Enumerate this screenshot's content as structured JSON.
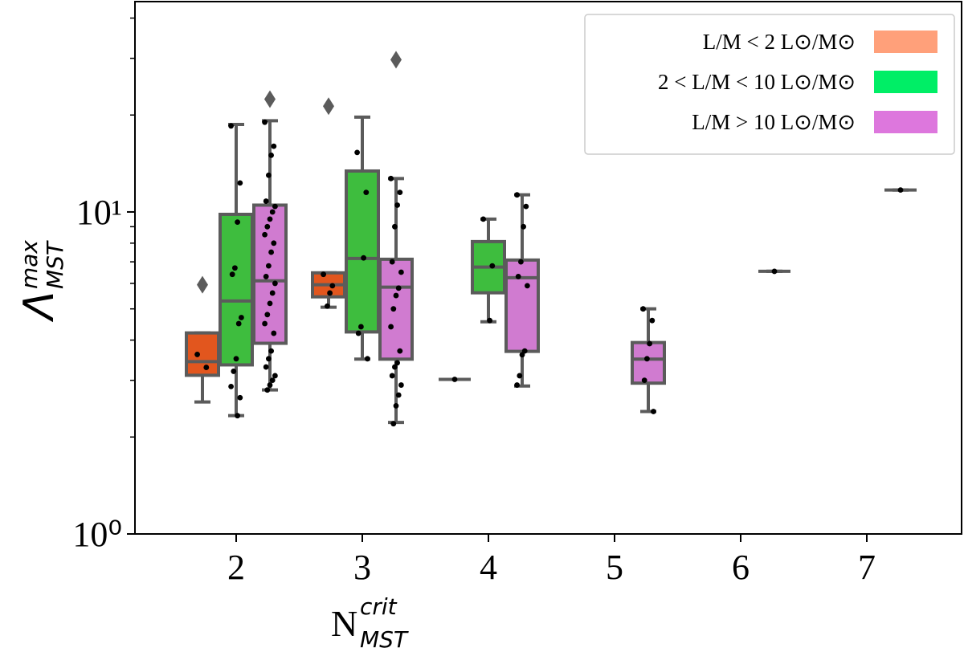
{
  "chart_data": {
    "type": "box",
    "categories": [
      2,
      3,
      4,
      5,
      6,
      7
    ],
    "x_label": {
      "base": "N",
      "sup": "crit",
      "sub": "MST"
    },
    "y_label": {
      "base": "Λ",
      "sup": "max",
      "sub": "MST"
    },
    "log_y": true,
    "ylim": [
      1,
      45
    ],
    "yticks": [
      {
        "value": 1,
        "label": "10⁰"
      },
      {
        "value": 10,
        "label": "10¹"
      }
    ],
    "yminorticks": [
      2,
      3,
      4,
      5,
      6,
      7,
      8,
      9,
      20,
      30,
      40
    ],
    "legend": "upper right",
    "series": [
      {
        "name": "L/M < 2 L⊙/M⊙",
        "color": "#ffa07a",
        "box_color": "#e2561e",
        "boxes": [
          {
            "whislo": 2.57,
            "q1": 3.11,
            "med": 3.43,
            "q3": 4.21,
            "whishi": 4.21,
            "fliers": [
              5.94
            ],
            "points": [
              3.61,
              3.29
            ]
          },
          {
            "whislo": 5.06,
            "q1": 5.45,
            "med": 5.94,
            "q3": 6.47,
            "whishi": 6.47,
            "fliers": [
              21.3
            ],
            "points": [
              6.4,
              5.9,
              5.6,
              5.1
            ]
          },
          {
            "whislo": 3.02,
            "q1": 3.02,
            "med": 3.02,
            "q3": 3.02,
            "whishi": 3.02,
            "fliers": [],
            "points": [
              3.02
            ]
          },
          null,
          null,
          null
        ]
      },
      {
        "name": "2 < L/M < 10 L⊙/M⊙",
        "color": "#00ee66",
        "box_color": "#3ebd3e",
        "boxes": [
          {
            "whislo": 2.33,
            "q1": 3.35,
            "med": 5.29,
            "q3": 9.83,
            "whishi": 18.7,
            "fliers": [],
            "points": [
              18.5,
              12.3,
              9.3,
              6.7,
              6.4,
              4.7,
              4.5,
              3.5,
              3.2,
              2.87,
              2.65,
              2.33
            ]
          },
          {
            "whislo": 3.49,
            "q1": 4.24,
            "med": 7.17,
            "q3": 13.4,
            "whishi": 19.7,
            "fliers": [],
            "points": [
              15.3,
              11.5,
              7.2,
              4.4,
              4.2,
              3.5
            ]
          },
          {
            "whislo": 4.56,
            "q1": 5.61,
            "med": 6.74,
            "q3": 8.09,
            "whishi": 9.5,
            "fliers": [],
            "points": [
              9.5,
              6.8,
              4.6
            ]
          },
          null,
          null,
          null
        ]
      },
      {
        "name": "L/M > 10 L⊙/M⊙",
        "color": "#dd77dd",
        "box_color": "#d07bd0",
        "boxes": [
          {
            "whislo": 2.8,
            "q1": 3.91,
            "med": 6.11,
            "q3": 10.5,
            "whishi": 19.2,
            "fliers": [
              22.4
            ],
            "points": [
              19,
              16,
              15,
              13,
              10.8,
              10.4,
              10,
              9.5,
              9,
              8.5,
              8,
              7.5,
              6.8,
              6.3,
              6,
              5.6,
              5.2,
              4.8,
              4.5,
              4.2,
              3.7,
              3.5,
              3.3,
              3.1,
              3.0,
              2.9,
              2.8
            ]
          },
          {
            "whislo": 2.22,
            "q1": 3.49,
            "med": 5.84,
            "q3": 7.13,
            "whishi": 12.7,
            "fliers": [
              29.7
            ],
            "points": [
              12.7,
              11.5,
              10.5,
              9,
              7,
              6.5,
              5.8,
              5.5,
              5,
              4.4,
              3.7,
              3.4,
              3.3,
              3.1,
              2.9,
              2.7,
              2.5,
              2.2
            ]
          },
          {
            "whislo": 2.88,
            "q1": 3.69,
            "med": 6.25,
            "q3": 7.09,
            "whishi": 11.3,
            "fliers": [],
            "points": [
              11.3,
              10.4,
              9,
              7,
              6.3,
              5.9,
              3.7,
              3.6,
              3.1,
              2.9
            ]
          },
          {
            "whislo": 2.4,
            "q1": 2.94,
            "med": 3.49,
            "q3": 3.93,
            "whishi": 5.0,
            "fliers": [],
            "points": [
              5,
              4.6,
              3.9,
              3.5,
              3.0,
              2.4
            ]
          },
          {
            "whislo": 6.54,
            "q1": 6.54,
            "med": 6.54,
            "q3": 6.54,
            "whishi": 6.54,
            "fliers": [],
            "points": [
              6.54
            ]
          },
          {
            "whislo": 11.7,
            "q1": 11.7,
            "med": 11.7,
            "q3": 11.7,
            "whishi": 11.7,
            "fliers": [],
            "points": [
              11.7
            ]
          }
        ]
      }
    ]
  }
}
